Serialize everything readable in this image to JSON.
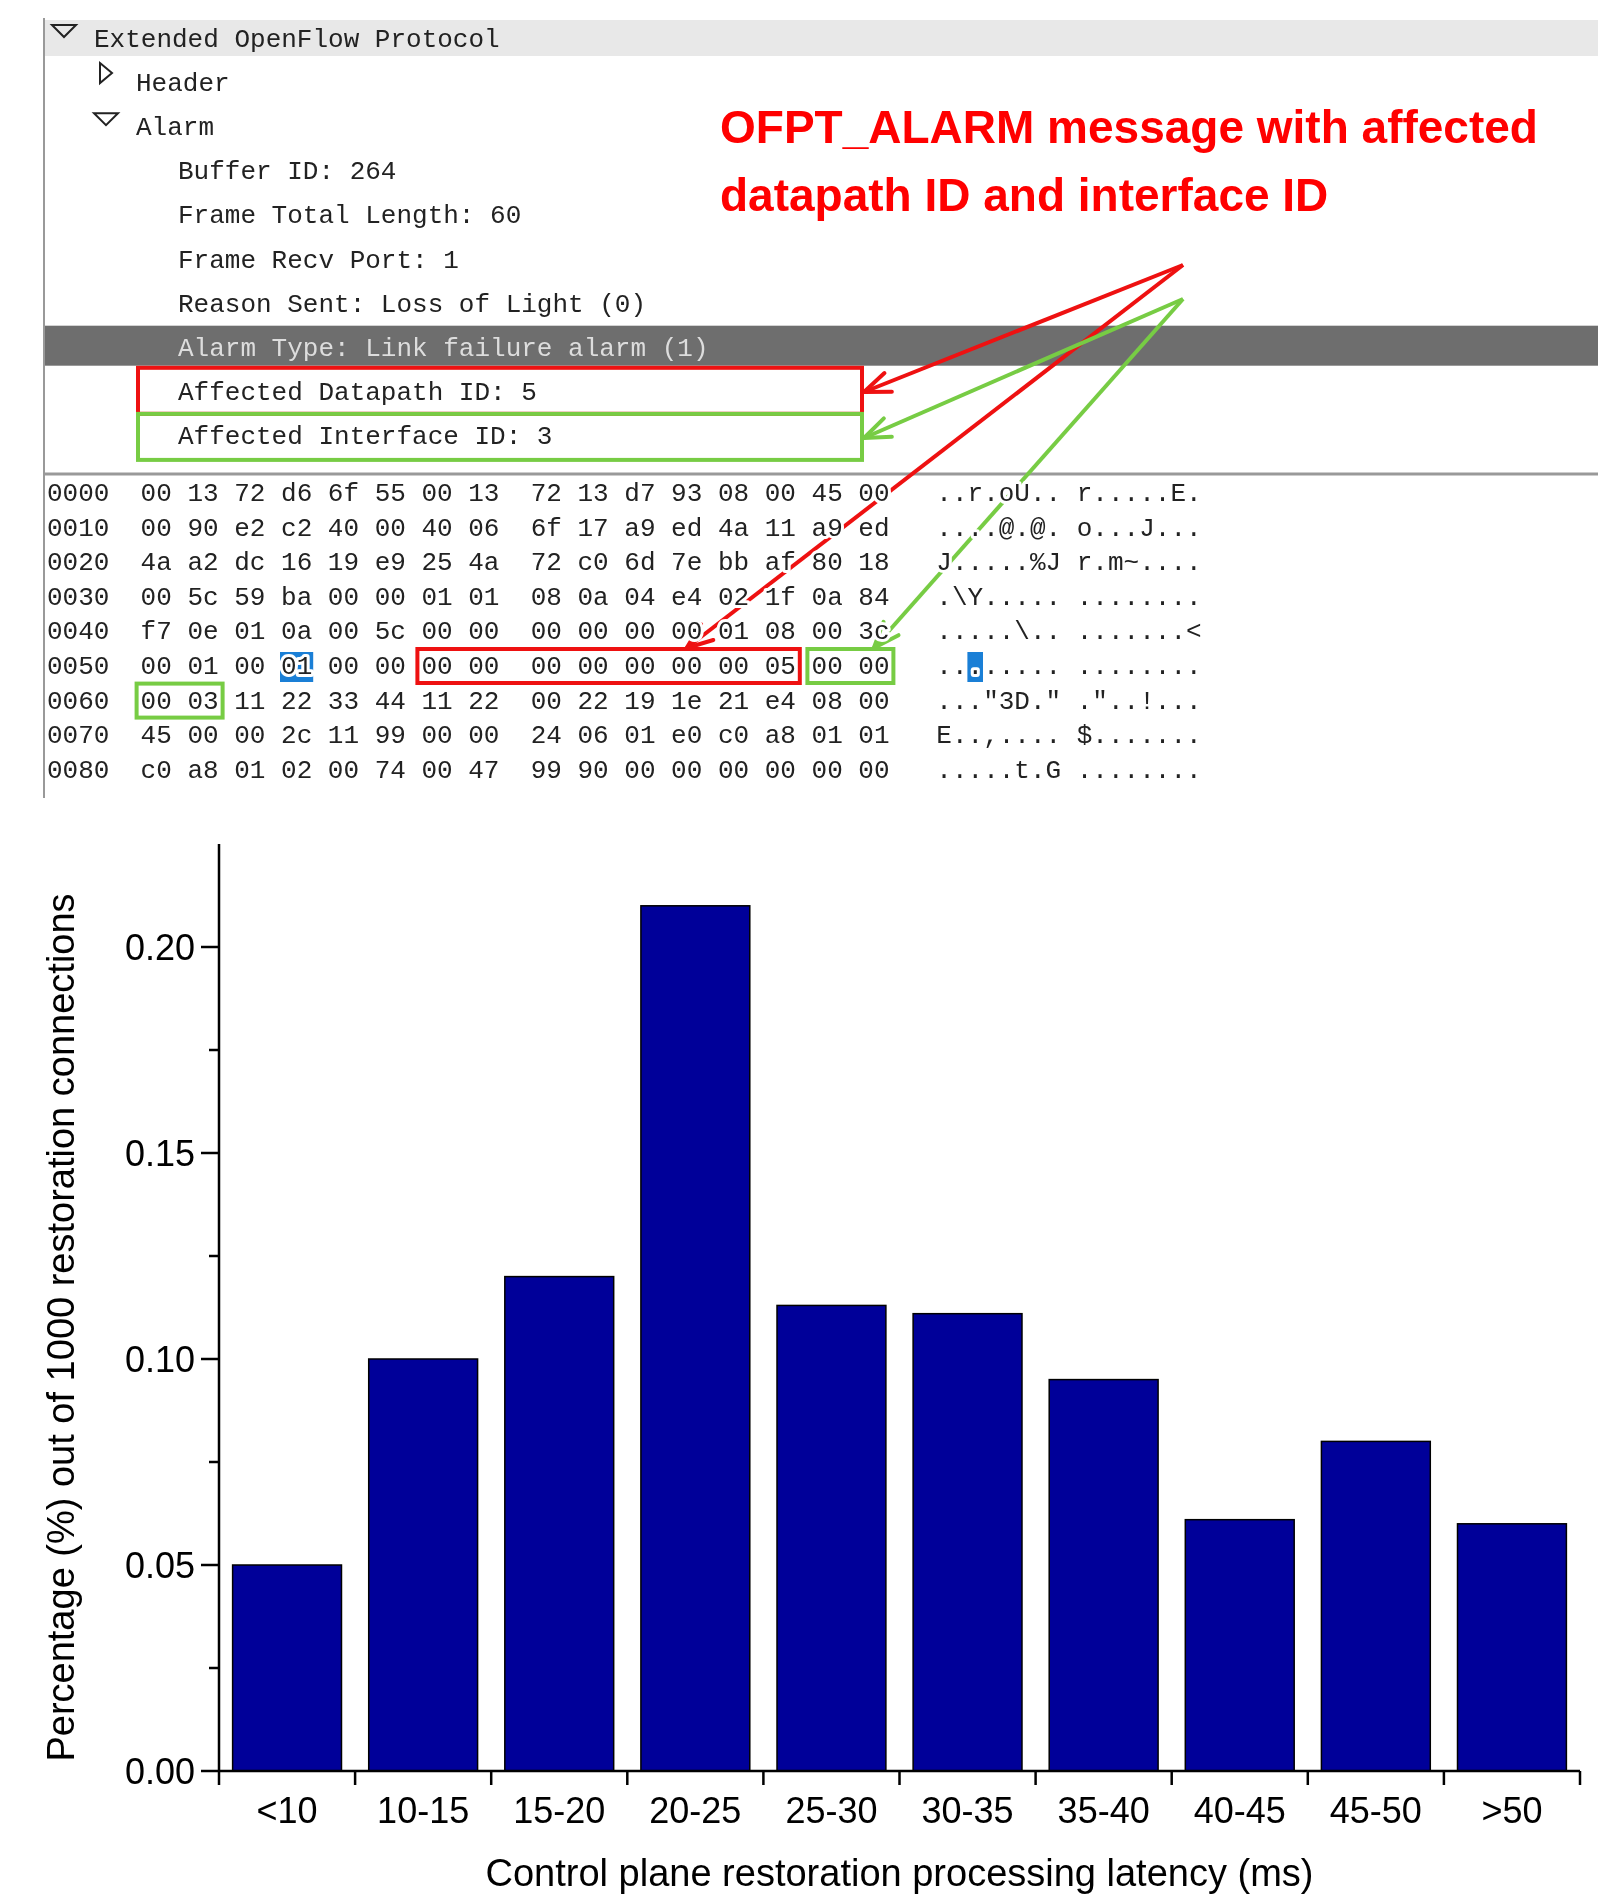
{
  "chart_data": [
    {
      "type": "other",
      "title": "OFPT_ALARM message with affected datapath ID and interface ID",
      "annotations": [
        "Extended OpenFlow Protocol",
        "Header",
        "Alarm",
        "Buffer ID: 264",
        "Frame Total Length: 60",
        "Frame Recv Port: 1",
        "Reason Sent: Loss of Light (0)",
        "Alarm Type: Link failure alarm (1)",
        "Affected Datapath ID: 5",
        "Affected Interface ID: 3",
        "0000  00 13 72 d6 6f 55 00 13  72 13 d7 93 08 00 45 00   ..r.oU.. r.....E.",
        "0010  00 90 e2 c2 40 00 40 06  6f 17 a9 ed 4a 11 a9 ed   ....@.@. o...J...",
        "0020  4a a2 dc 16 19 e9 25 4a  72 c0 6d 7e bb af 80 18   J.....%J r.m~....",
        "0030  00 5c 59 ba 00 00 01 01  08 0a 04 e4 02 1f 0a 84   .\\Y..... ........",
        "0040  f7 0e 01 0a 00 5c 00 00  00 00 00 00 01 08 00 3c   .....\\.. .......<",
        "0050  00 01 00 01 00 00 00 00  00 00 00 00 00 05 00 00   ........ ........",
        "0060  00 03 11 22 33 44 11 22  00 22 19 1e 21 e4 08 00   ...\"3D.\" .\"..!...",
        "0070  45 00 00 2c 11 99 00 00  24 06 01 e0 c0 a8 01 01   E..,.... $.......",
        "0080  c0 a8 01 02 00 74 00 47  99 90 00 00 00 00 00 00   .....t.G ........"
      ]
    },
    {
      "type": "bar",
      "xlabel": "Control plane restoration processing latency (ms)",
      "ylabel": "Percentage (%) out of 1000 restoration connections",
      "categories": [
        "<10",
        "10-15",
        "15-20",
        "20-25",
        "25-30",
        "30-35",
        "35-40",
        "40-45",
        "45-50",
        ">50"
      ],
      "values": [
        0.05,
        0.1,
        0.12,
        0.21,
        0.113,
        0.111,
        0.095,
        0.061,
        0.08,
        0.06
      ],
      "color": "#000099",
      "ylim": [
        0,
        0.225
      ],
      "yticks": [
        {
          "value": 0,
          "label": "0.00"
        },
        {
          "value": 0.025,
          "label": null
        },
        {
          "value": 0.05,
          "label": "0.05"
        },
        {
          "value": 0.075,
          "label": null
        },
        {
          "value": 0.1,
          "label": "0.10"
        },
        {
          "value": 0.125,
          "label": null
        },
        {
          "value": 0.15,
          "label": "0.15"
        },
        {
          "value": 0.175,
          "label": null
        },
        {
          "value": 0.2,
          "label": "0.20"
        }
      ]
    }
  ]
}
